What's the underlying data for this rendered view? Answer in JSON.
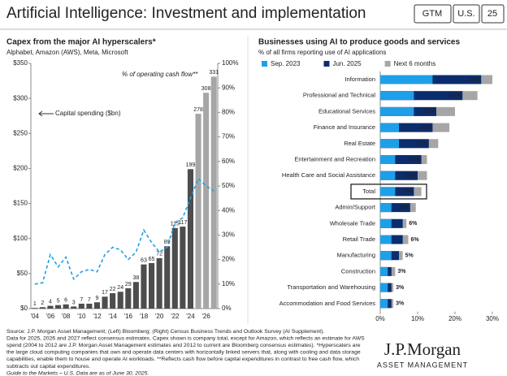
{
  "header": {
    "title": "Artificial Intelligence: Investment and implementation",
    "tags": [
      "GTM",
      "U.S.",
      "25"
    ]
  },
  "chart_data": [
    {
      "type": "bar",
      "title": "Capex from the major AI hyperscalers*",
      "subtitle": "Alphabet, Amazon (AWS), Meta, Microsoft",
      "categories": [
        "'04",
        null,
        "'06",
        null,
        "'08",
        null,
        "'10",
        null,
        "'12",
        null,
        "'14",
        null,
        "'16",
        null,
        "'18",
        null,
        "'20",
        null,
        "'22",
        null,
        "'24",
        null,
        "'26",
        null
      ],
      "series": [
        {
          "name": "Capital spending ($bn)",
          "color": "#4d4d4d",
          "colors": [
            "#4d4d4d",
            "#4d4d4d",
            "#4d4d4d",
            "#4d4d4d",
            "#4d4d4d",
            "#4d4d4d",
            "#4d4d4d",
            "#4d4d4d",
            "#4d4d4d",
            "#4d4d4d",
            "#4d4d4d",
            "#4d4d4d",
            "#4d4d4d",
            "#4d4d4d",
            "#4d4d4d",
            "#4d4d4d",
            "#4d4d4d",
            "#4d4d4d",
            "#4d4d4d",
            "#4d4d4d",
            "#4d4d4d",
            "#a6a6a6",
            "#a6a6a6",
            "#a6a6a6"
          ],
          "values": [
            1,
            2,
            4,
            5,
            6,
            3,
            7,
            7,
            9,
            17,
            22,
            24,
            29,
            38,
            63,
            65,
            72,
            89,
            115,
            117,
            199,
            278,
            308,
            331
          ]
        },
        {
          "name": "% of operating cash flow**",
          "color": "#1f9fe8",
          "axis": "y2",
          "dashed": true,
          "values": [
            10,
            10.5,
            22,
            17,
            21,
            12,
            15,
            16,
            15,
            22,
            25,
            24,
            20,
            23,
            32,
            27,
            23,
            25,
            35,
            37,
            45,
            53,
            50,
            48
          ]
        }
      ],
      "ylim": [
        0,
        350
      ],
      "yticks": [
        {
          "value": 0,
          "label": "$0"
        },
        {
          "value": 50,
          "label": "$50"
        },
        {
          "value": 100,
          "label": "$100"
        },
        {
          "value": 150,
          "label": "$150"
        },
        {
          "value": 200,
          "label": "$200"
        },
        {
          "value": 250,
          "label": "$250"
        },
        {
          "value": 300,
          "label": "$300"
        },
        {
          "value": 350,
          "label": "$350"
        }
      ],
      "y2lim": [
        0,
        100
      ],
      "y2ticks": [
        {
          "value": 0,
          "label": "0%"
        },
        {
          "value": 10,
          "label": "10%"
        },
        {
          "value": 20,
          "label": "20%"
        },
        {
          "value": 30,
          "label": "30%"
        },
        {
          "value": 40,
          "label": "40%"
        },
        {
          "value": 50,
          "label": "50%"
        },
        {
          "value": 60,
          "label": "60%"
        },
        {
          "value": 70,
          "label": "70%"
        },
        {
          "value": 80,
          "label": "80%"
        },
        {
          "value": 90,
          "label": "90%"
        },
        {
          "value": 100,
          "label": "100%"
        }
      ]
    },
    {
      "type": "bar",
      "orientation": "horizontal",
      "title": "Businesses using AI to produce goods and services",
      "subtitle": "% of all firms reporting use of AI applications",
      "categories": [
        "Information",
        "Professional and Technical",
        "Educational Services",
        "Finance and Insurance",
        "Real Estate",
        "Entertainment and Recreation",
        "Health Care and Social Assistance",
        "Total",
        "Admin/Support",
        "Wholesale Trade",
        "Retail Trade",
        "Manufacturing",
        "Construction",
        "Transportation and Warehousing",
        "Accommodation and Food Services"
      ],
      "highlight": "Total",
      "series": [
        {
          "name": "Sep. 2023",
          "color": "#1f9fe8",
          "values": [
            14,
            9,
            9,
            5,
            5,
            4,
            4,
            4,
            3,
            3,
            3,
            3,
            2,
            2,
            2
          ]
        },
        {
          "name": "Jun. 2025",
          "color": "#0b2d6e",
          "values": [
            27,
            22,
            15,
            14,
            13,
            11,
            10,
            9,
            8,
            6,
            6,
            5,
            3,
            3,
            3
          ],
          "value_labels": [
            "27%",
            "22%",
            "15%",
            "14%",
            "13%",
            "11%",
            "10%",
            "9%",
            "8%",
            "6%",
            "6%",
            "5%",
            "3%",
            "3%",
            "3%"
          ]
        },
        {
          "name": "Next 6 months",
          "color": "#a6a6a6",
          "values": [
            30,
            26,
            20,
            18.5,
            15.5,
            12.5,
            12.5,
            11,
            9.5,
            7,
            7.5,
            6,
            4,
            3.5,
            3.5
          ]
        }
      ],
      "xlim": [
        0,
        30
      ],
      "xticks": [
        {
          "value": 0,
          "label": "0%"
        },
        {
          "value": 10,
          "label": "10%"
        },
        {
          "value": 20,
          "label": "20%"
        },
        {
          "value": 30,
          "label": "30%"
        }
      ],
      "legend": "top"
    }
  ],
  "footer": {
    "notes": [
      "Source: J.P. Morgan Asset Management; (Left) Bloomberg; (Right) Census Business Trends and Outlook Survey (AI Supplement).",
      "Data for 2025, 2026 and 2027 reflect consensus estimates. Capex shown is company total, except for Amazon, which reflects an estimate for AWS",
      "spend (2004 to 2012 are J.P. Morgan Asset Management estimates and 2012 to current are Bloomberg consensus estimates). *Hyperscalers are",
      "the large cloud computing companies that own and operate data centers with horizontally linked servers that, along with cooling and data storage",
      "capabilities, enable them to house and operate AI workloads. **Reflects cash flow before capital expenditures in contrast to free cash flow, which",
      "subtracts out capital expenditures."
    ],
    "guide": "Guide to the Markets – U.S. Data are as of June 30, 2025.",
    "logo": "J.P.Morgan",
    "logo_sub": "ASSET MANAGEMENT"
  }
}
